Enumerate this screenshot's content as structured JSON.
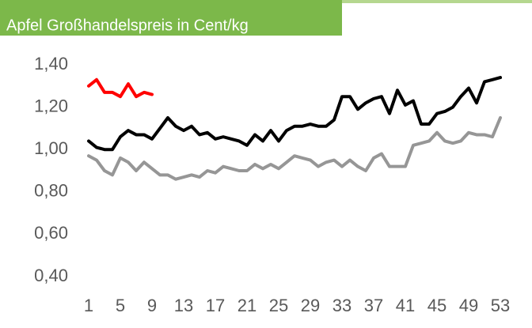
{
  "chart_data": {
    "type": "line",
    "title": "Apfel Großhandelspreis in Cent/kg",
    "categories": [
      1,
      null,
      null,
      null,
      5,
      null,
      null,
      null,
      9,
      null,
      null,
      null,
      13,
      null,
      null,
      null,
      17,
      null,
      null,
      null,
      21,
      null,
      null,
      null,
      25,
      null,
      null,
      null,
      29,
      null,
      null,
      null,
      33,
      null,
      null,
      null,
      37,
      null,
      null,
      null,
      41,
      null,
      null,
      null,
      45,
      null,
      null,
      null,
      49,
      null,
      null,
      null,
      53
    ],
    "series": [
      {
        "color": "#ff0000",
        "values": [
          1.3,
          1.33,
          1.27,
          1.27,
          1.25,
          1.31,
          1.25,
          1.27,
          1.26,
          null,
          null,
          null,
          null,
          null,
          null,
          null,
          null,
          null,
          null,
          null,
          null,
          null,
          null,
          null,
          null,
          null,
          null,
          null,
          null,
          null,
          null,
          null,
          null,
          null,
          null,
          null,
          null,
          null,
          null,
          null,
          null,
          null,
          null,
          null,
          null,
          null,
          null,
          null,
          null,
          null,
          null,
          null,
          null
        ]
      },
      {
        "color": "#000000",
        "values": [
          1.04,
          1.01,
          1.0,
          1.0,
          1.06,
          1.09,
          1.07,
          1.07,
          1.05,
          1.1,
          1.15,
          1.11,
          1.09,
          1.11,
          1.07,
          1.08,
          1.05,
          1.06,
          1.05,
          1.04,
          1.02,
          1.07,
          1.04,
          1.09,
          1.04,
          1.09,
          1.11,
          1.11,
          1.12,
          1.11,
          1.11,
          1.14,
          1.25,
          1.25,
          1.19,
          1.22,
          1.24,
          1.25,
          1.17,
          1.28,
          1.21,
          1.23,
          1.12,
          1.12,
          1.17,
          1.18,
          1.2,
          1.25,
          1.29,
          1.22,
          1.32,
          1.33,
          1.34
        ]
      },
      {
        "color": "#969696",
        "values": [
          0.97,
          0.95,
          0.9,
          0.88,
          0.96,
          0.94,
          0.9,
          0.94,
          0.91,
          0.88,
          0.88,
          0.86,
          0.87,
          0.88,
          0.87,
          0.9,
          0.89,
          0.92,
          0.91,
          0.9,
          0.9,
          0.93,
          0.91,
          0.93,
          0.91,
          0.94,
          0.97,
          0.96,
          0.95,
          0.92,
          0.94,
          0.95,
          0.92,
          0.95,
          0.92,
          0.9,
          0.96,
          0.98,
          0.92,
          0.92,
          0.92,
          1.02,
          1.03,
          1.04,
          1.08,
          1.04,
          1.03,
          1.04,
          1.08,
          1.07,
          1.07,
          1.06,
          1.15
        ]
      }
    ],
    "ylim": [
      0.4,
      1.4
    ],
    "yticks": [
      {
        "value": 0.4,
        "label": "0,40"
      },
      {
        "value": 0.6,
        "label": "0,60"
      },
      {
        "value": 0.8,
        "label": "0,80"
      },
      {
        "value": 1.0,
        "label": "1,00"
      },
      {
        "value": 1.2,
        "label": "1,20"
      },
      {
        "value": 1.4,
        "label": "1,40"
      }
    ],
    "grid": false
  }
}
